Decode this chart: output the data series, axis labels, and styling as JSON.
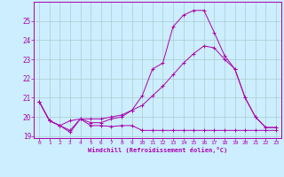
{
  "xlabel": "Windchill (Refroidissement éolien,°C)",
  "background_color": "#cceeff",
  "grid_color": "#aacccc",
  "line_color": "#aa00aa",
  "xlim": [
    -0.5,
    23.5
  ],
  "ylim": [
    18.9,
    26.0
  ],
  "xticks": [
    0,
    1,
    2,
    3,
    4,
    5,
    6,
    7,
    8,
    9,
    10,
    11,
    12,
    13,
    14,
    15,
    16,
    17,
    18,
    19,
    20,
    21,
    22,
    23
  ],
  "yticks": [
    19,
    20,
    21,
    22,
    23,
    24,
    25
  ],
  "line1_x": [
    0,
    1,
    2,
    3,
    4,
    5,
    6,
    7,
    8,
    9,
    10,
    11,
    12,
    13,
    14,
    15,
    16,
    17,
    18,
    19,
    20,
    21,
    22,
    23
  ],
  "line1_y": [
    20.8,
    19.8,
    19.55,
    19.2,
    19.9,
    19.55,
    19.55,
    19.5,
    19.55,
    19.55,
    19.3,
    19.3,
    19.3,
    19.3,
    19.3,
    19.3,
    19.3,
    19.3,
    19.3,
    19.3,
    19.3,
    19.3,
    19.3,
    19.3
  ],
  "line2_x": [
    0,
    1,
    2,
    3,
    4,
    5,
    6,
    7,
    8,
    9,
    10,
    11,
    12,
    13,
    14,
    15,
    16,
    17,
    18,
    19,
    20,
    21,
    22,
    23
  ],
  "line2_y": [
    20.8,
    19.8,
    19.55,
    19.8,
    19.9,
    19.9,
    19.9,
    20.0,
    20.1,
    20.35,
    20.6,
    21.1,
    21.6,
    22.2,
    22.8,
    23.3,
    23.7,
    23.6,
    23.0,
    22.5,
    21.0,
    20.0,
    19.45,
    19.45
  ],
  "line3_x": [
    0,
    1,
    2,
    3,
    4,
    5,
    6,
    7,
    8,
    9,
    10,
    11,
    12,
    13,
    14,
    15,
    16,
    17,
    18,
    19,
    20,
    21,
    22,
    23
  ],
  "line3_y": [
    20.8,
    19.8,
    19.55,
    19.3,
    19.9,
    19.7,
    19.7,
    19.9,
    20.0,
    20.35,
    21.1,
    22.5,
    22.8,
    24.7,
    25.3,
    25.55,
    25.55,
    24.4,
    23.2,
    22.5,
    21.0,
    20.0,
    19.45,
    19.45
  ]
}
